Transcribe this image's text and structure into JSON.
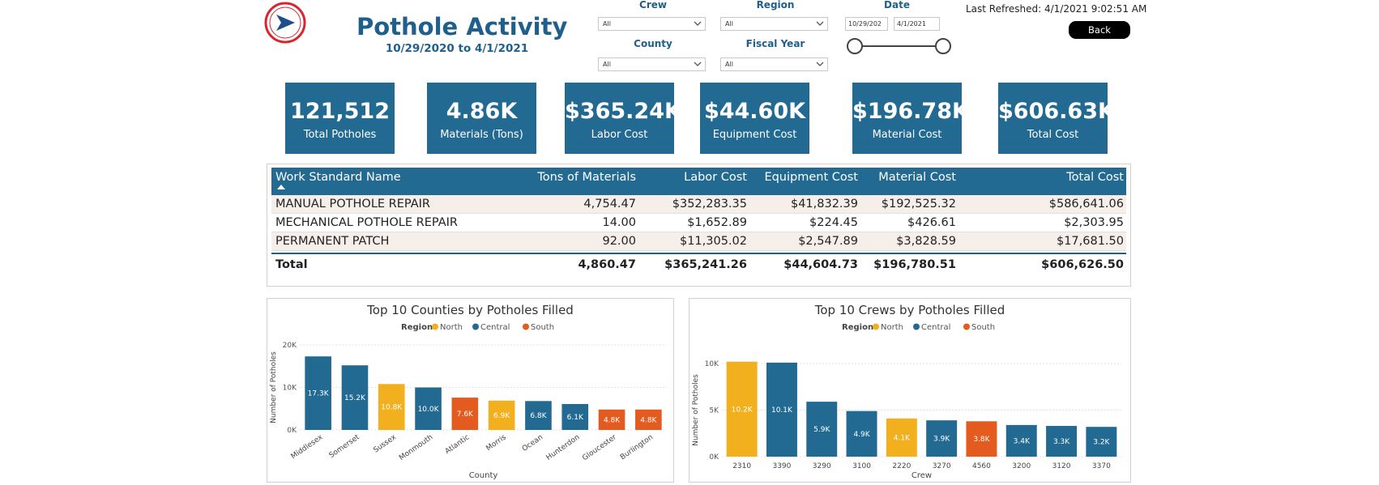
{
  "header": {
    "title": "Pothole Activity",
    "date_range": "10/29/2020 to 4/1/2021",
    "last_refreshed": "Last Refreshed: 4/1/2021 9:02:51 AM",
    "back_label": "Back"
  },
  "filters": {
    "crew": {
      "label": "Crew",
      "value": "All"
    },
    "region": {
      "label": "Region",
      "value": "All"
    },
    "county": {
      "label": "County",
      "value": "All"
    },
    "fiscal_year": {
      "label": "Fiscal Year",
      "value": "All"
    },
    "date": {
      "label": "Date",
      "start": "10/29/202",
      "end": "4/1/2021"
    }
  },
  "kpis": [
    {
      "value": "121,512",
      "label": "Total Potholes"
    },
    {
      "value": "4.86K",
      "label": "Materials (Tons)"
    },
    {
      "value": "$365.24K",
      "label": "Labor Cost"
    },
    {
      "value": "$44.60K",
      "label": "Equipment Cost"
    },
    {
      "value": "$196.78K",
      "label": "Material Cost"
    },
    {
      "value": "$606.63K",
      "label": "Total Cost"
    }
  ],
  "table": {
    "columns": [
      "Work Standard Name",
      "Tons of Materials",
      "Labor Cost",
      "Equipment Cost",
      "Material Cost",
      "Total Cost"
    ],
    "rows": [
      [
        "MANUAL POTHOLE REPAIR",
        "4,754.47",
        "$352,283.35",
        "$41,832.39",
        "$192,525.32",
        "$586,641.06"
      ],
      [
        "MECHANICAL POTHOLE REPAIR",
        "14.00",
        "$1,652.89",
        "$224.45",
        "$426.61",
        "$2,303.95"
      ],
      [
        "PERMANENT PATCH",
        "92.00",
        "$11,305.02",
        "$2,547.89",
        "$3,828.59",
        "$17,681.50"
      ]
    ],
    "total": [
      "Total",
      "4,860.47",
      "$365,241.26",
      "$44,604.73",
      "$196,780.51",
      "$606,626.50"
    ]
  },
  "colors": {
    "North": "#f2b01e",
    "Central": "#236a93",
    "South": "#e35b1e"
  },
  "chart_data": [
    {
      "type": "bar",
      "title": "Top 10 Counties by Potholes Filled",
      "legend_title": "Region",
      "legend": [
        "North",
        "Central",
        "South"
      ],
      "legend_position": "top",
      "xlabel": "County",
      "ylabel": "Number of Potholes",
      "ylim": [
        0,
        20000
      ],
      "yticks": [
        0,
        10000,
        20000
      ],
      "ytick_labels": [
        "0K",
        "10K",
        "20K"
      ],
      "grid": true,
      "categories": [
        "Middlesex",
        "Somerset",
        "Sussex",
        "Monmouth",
        "Atlantic",
        "Morris",
        "Ocean",
        "Hunterdon",
        "Gloucester",
        "Burlington"
      ],
      "values": [
        17300,
        15200,
        10800,
        10000,
        7600,
        6900,
        6800,
        6100,
        4800,
        4800
      ],
      "labels": [
        "17.3K",
        "15.2K",
        "10.8K",
        "10.0K",
        "7.6K",
        "6.9K",
        "6.8K",
        "6.1K",
        "4.8K",
        "4.8K"
      ],
      "regions": [
        "Central",
        "Central",
        "North",
        "Central",
        "South",
        "North",
        "Central",
        "Central",
        "South",
        "South"
      ]
    },
    {
      "type": "bar",
      "title": "Top 10 Crews by Potholes Filled",
      "legend_title": "Region",
      "legend": [
        "North",
        "Central",
        "South"
      ],
      "legend_position": "top",
      "xlabel": "Crew",
      "ylabel": "Number of Potholes",
      "ylim": [
        0,
        10000
      ],
      "yticks": [
        0,
        5000,
        10000
      ],
      "ytick_labels": [
        "0K",
        "5K",
        "10K"
      ],
      "grid": true,
      "categories": [
        "2310",
        "3390",
        "3290",
        "3100",
        "2220",
        "3270",
        "4560",
        "3200",
        "3120",
        "3370"
      ],
      "values": [
        10200,
        10100,
        5900,
        4900,
        4100,
        3900,
        3800,
        3400,
        3300,
        3200
      ],
      "labels": [
        "10.2K",
        "10.1K",
        "5.9K",
        "4.9K",
        "4.1K",
        "3.9K",
        "3.8K",
        "3.4K",
        "3.3K",
        "3.2K"
      ],
      "regions": [
        "North",
        "Central",
        "Central",
        "Central",
        "North",
        "Central",
        "South",
        "Central",
        "Central",
        "Central"
      ]
    }
  ]
}
